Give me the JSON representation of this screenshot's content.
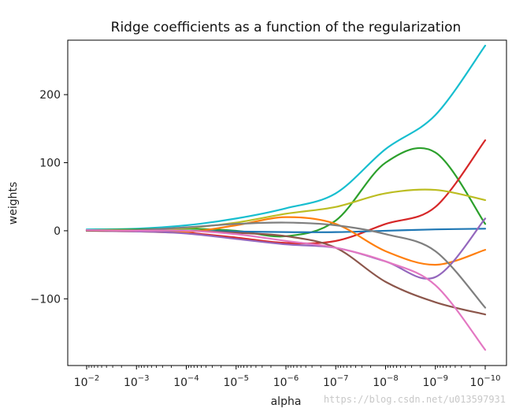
{
  "chart_data": {
    "type": "line",
    "title": "Ridge coefficients as a function of the regularization",
    "xlabel": "alpha",
    "ylabel": "weights",
    "x_scale": "log",
    "x_reversed": true,
    "xlim": [
      0.01,
      1e-10
    ],
    "ylim": [
      -198,
      280
    ],
    "x_ticks": [
      {
        "value": 0.01,
        "base": "10",
        "exp": "−2"
      },
      {
        "value": 0.001,
        "base": "10",
        "exp": "−3"
      },
      {
        "value": 0.0001,
        "base": "10",
        "exp": "−4"
      },
      {
        "value": 1e-05,
        "base": "10",
        "exp": "−5"
      },
      {
        "value": 1e-06,
        "base": "10",
        "exp": "−6"
      },
      {
        "value": 1e-07,
        "base": "10",
        "exp": "−7"
      },
      {
        "value": 1e-08,
        "base": "10",
        "exp": "−8"
      },
      {
        "value": 1e-09,
        "base": "10",
        "exp": "−9"
      },
      {
        "value": 1e-10,
        "base": "10",
        "exp": "−10"
      }
    ],
    "y_ticks": [
      {
        "value": -100,
        "label": "−100"
      },
      {
        "value": 0,
        "label": "0"
      },
      {
        "value": 100,
        "label": "100"
      },
      {
        "value": 200,
        "label": "200"
      }
    ],
    "grid": false,
    "legend": false,
    "x": [
      0.01,
      0.001,
      0.0001,
      1e-05,
      1e-06,
      1e-07,
      1e-08,
      1e-09,
      1e-10
    ],
    "series": [
      {
        "color": "#17becf",
        "values": [
          2,
          3,
          8,
          18,
          33,
          55,
          120,
          170,
          272
        ]
      },
      {
        "color": "#2ca02c",
        "values": [
          1,
          2,
          3,
          0,
          -8,
          15,
          100,
          115,
          10
        ]
      },
      {
        "color": "#d62728",
        "values": [
          1,
          0,
          -3,
          -10,
          -18,
          -15,
          10,
          35,
          133
        ]
      },
      {
        "color": "#bcbd22",
        "values": [
          1,
          1,
          4,
          12,
          25,
          35,
          55,
          60,
          45
        ]
      },
      {
        "color": "#1f77b4",
        "values": [
          0,
          0,
          0,
          -1,
          -2,
          -2,
          0,
          2,
          3
        ]
      },
      {
        "color": "#ff7f0e",
        "values": [
          0,
          -1,
          -2,
          8,
          20,
          10,
          -30,
          -50,
          -28
        ]
      },
      {
        "color": "#9467bd",
        "values": [
          0,
          -1,
          -4,
          -12,
          -20,
          -25,
          -45,
          -68,
          18
        ]
      },
      {
        "color": "#7f7f7f",
        "values": [
          0,
          1,
          5,
          10,
          12,
          8,
          -5,
          -30,
          -113
        ]
      },
      {
        "color": "#8c564b",
        "values": [
          0,
          0,
          0,
          -3,
          -8,
          -25,
          -75,
          -105,
          -123
        ]
      },
      {
        "color": "#e377c2",
        "values": [
          1,
          0,
          0,
          -5,
          -15,
          -25,
          -45,
          -80,
          -175
        ]
      }
    ]
  },
  "watermark": "https://blog.csdn.net/u013597931"
}
